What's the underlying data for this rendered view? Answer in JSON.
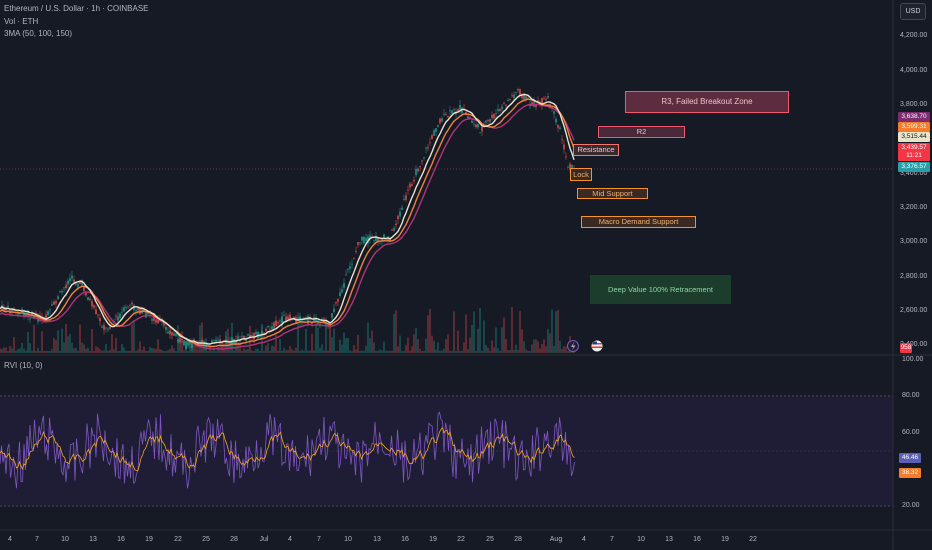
{
  "header": {
    "title": "Ethereum / U.S. Dollar · 1h · COINBASE",
    "volume_label": "Vol · ETH",
    "ma_label": "3MA (50, 100, 150)",
    "currency_button": "USD"
  },
  "price_axis": {
    "ticks": [
      "4,200.00",
      "4,000.00",
      "3,800.00",
      "3,600.00",
      "3,400.00",
      "3,200.00",
      "3,000.00",
      "2,800.00",
      "2,600.00",
      "2,400.00"
    ],
    "badges": [
      {
        "label": "3,638.70",
        "color": "#7b2d6e"
      },
      {
        "label": "3,599.31",
        "color": "#f57c2a"
      },
      {
        "label": "3,515.44",
        "color": "#e9e3c9"
      },
      {
        "label": "3,439.57",
        "color": "#f23645"
      },
      {
        "label": "11:21",
        "color": "#f23645"
      },
      {
        "label": "3,376.57",
        "color": "#2a9da6"
      },
      {
        "label": "958",
        "color": "#f23645"
      }
    ]
  },
  "zones": [
    {
      "label": "R3, Failed Breakout Zone",
      "fill": "#5d2c3e",
      "border": "#f0566c"
    },
    {
      "label": "R2",
      "fill": "#4a2a3a",
      "border": "#f0566c"
    },
    {
      "label": "Resistance",
      "fill": "#3a2a2e",
      "border": "#f0786c"
    },
    {
      "label": "Lock",
      "fill": "#3a2a22",
      "border": "#f5922b"
    },
    {
      "label": "Mid Support",
      "fill": "#3a2a22",
      "border": "#f5922b"
    },
    {
      "label": "Macro Demand Support",
      "fill": "#3a2a22",
      "border": "#f5922b"
    },
    {
      "label": "Deep Value 100% Retracement",
      "fill": "#1c3d2c",
      "border": "#1c3d2c"
    }
  ],
  "rvi": {
    "label": "RVI (10, 0)",
    "ticks": [
      "100.00",
      "80.00",
      "60.00",
      "20.00"
    ],
    "badges": [
      {
        "label": "46.46",
        "color": "#5b5fb5"
      },
      {
        "label": "38.32",
        "color": "#f57c2a"
      }
    ]
  },
  "time_axis": {
    "ticks": [
      "4",
      "7",
      "10",
      "13",
      "16",
      "19",
      "22",
      "25",
      "28",
      "Jul",
      "4",
      "7",
      "10",
      "13",
      "16",
      "19",
      "22",
      "25",
      "28",
      "Aug",
      "4",
      "7",
      "10",
      "13",
      "16",
      "19",
      "22"
    ]
  },
  "colors": {
    "bull": "#26a69a",
    "bear": "#ef5350",
    "ma50": "#e8e3d3",
    "ma100": "#f0833a",
    "ma150": "#b0337a",
    "rvi": "#7e57c2",
    "rvi_signal": "#f5a623"
  }
}
